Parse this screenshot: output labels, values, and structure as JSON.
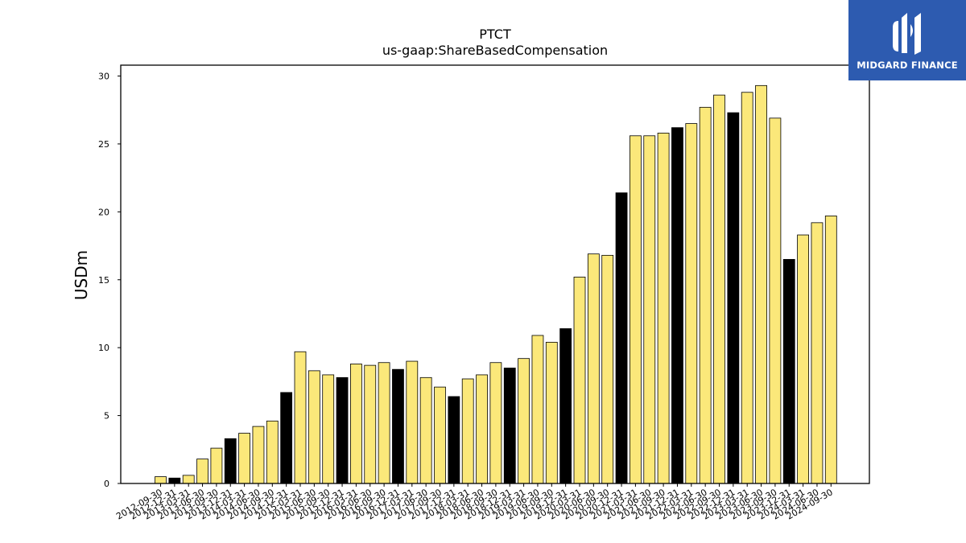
{
  "brand": {
    "name": "MIDGARD FINANCE",
    "bg_color": "#2d5bb0"
  },
  "chart_data": {
    "type": "bar",
    "title": "PTCT",
    "subtitle": "us-gaap:ShareBasedCompensation",
    "ylabel": "USDm",
    "xlabel": "",
    "ylim": [
      0,
      30.8
    ],
    "yticks": [
      0,
      5,
      10,
      15,
      20,
      25,
      30
    ],
    "grid": false,
    "colors": {
      "quarter": "#fbe87a",
      "year_end": "#000000",
      "edge": "#000000"
    },
    "categories": [
      "2012-09-30",
      "2012-12-31",
      "2013-03-31",
      "2013-06-30",
      "2013-09-30",
      "2013-12-31",
      "2014-03-31",
      "2014-06-30",
      "2014-09-30",
      "2014-12-31",
      "2015-03-31",
      "2015-06-30",
      "2015-09-30",
      "2015-12-31",
      "2016-03-31",
      "2016-06-30",
      "2016-09-30",
      "2016-12-31",
      "2017-03-31",
      "2017-06-30",
      "2017-09-30",
      "2017-12-31",
      "2018-03-31",
      "2018-06-30",
      "2018-09-30",
      "2018-12-31",
      "2019-03-31",
      "2019-06-30",
      "2019-09-30",
      "2019-12-31",
      "2020-03-31",
      "2020-06-30",
      "2020-09-30",
      "2020-12-31",
      "2021-03-31",
      "2021-06-30",
      "2021-09-30",
      "2021-12-31",
      "2022-03-31",
      "2022-06-30",
      "2022-09-30",
      "2022-12-31",
      "2023-03-31",
      "2023-06-30",
      "2023-09-30",
      "2023-12-31",
      "2024-03-31",
      "2024-06-30",
      "2024-09-30"
    ],
    "values": [
      0.5,
      0.4,
      0.6,
      1.8,
      2.6,
      3.3,
      3.7,
      4.2,
      4.6,
      6.7,
      9.7,
      8.3,
      8.0,
      7.8,
      8.8,
      8.7,
      8.9,
      8.4,
      9.0,
      7.8,
      7.1,
      6.4,
      7.7,
      8.0,
      8.9,
      8.5,
      9.2,
      10.9,
      10.4,
      11.4,
      15.2,
      16.9,
      16.8,
      21.4,
      25.6,
      25.6,
      25.8,
      26.2,
      26.5,
      27.7,
      28.6,
      27.3,
      28.8,
      29.3,
      26.9,
      16.5,
      18.3,
      19.2,
      19.7
    ]
  }
}
